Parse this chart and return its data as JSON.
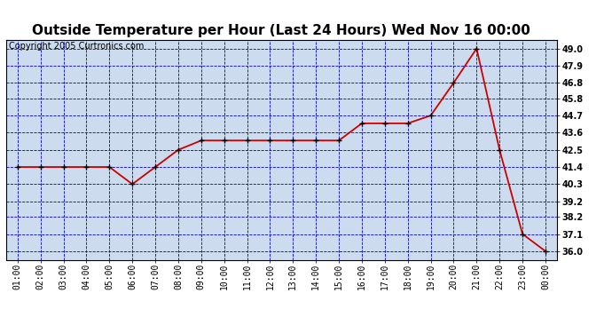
{
  "title": "Outside Temperature per Hour (Last 24 Hours) Wed Nov 16 00:00",
  "copyright": "Copyright 2005 Curtronics.com",
  "x_labels": [
    "01:00",
    "02:00",
    "03:00",
    "04:00",
    "05:00",
    "06:00",
    "07:00",
    "08:00",
    "09:00",
    "10:00",
    "11:00",
    "12:00",
    "13:00",
    "14:00",
    "15:00",
    "16:00",
    "17:00",
    "18:00",
    "19:00",
    "20:00",
    "21:00",
    "22:00",
    "23:00",
    "00:00"
  ],
  "y_values": [
    41.4,
    41.4,
    41.4,
    41.4,
    41.4,
    40.3,
    41.4,
    42.5,
    43.1,
    43.1,
    43.1,
    43.1,
    43.1,
    43.1,
    43.1,
    44.2,
    44.2,
    44.2,
    44.7,
    46.8,
    49.0,
    42.5,
    37.1,
    36.0
  ],
  "line_color": "#cc0000",
  "marker_color": "#000000",
  "bg_color": "#ffffff",
  "plot_bg_color": "#ccdcee",
  "grid_color": "#0000cc",
  "y_min": 35.45,
  "y_max": 49.55,
  "y_ticks": [
    36.0,
    37.1,
    38.2,
    39.2,
    40.3,
    41.4,
    42.5,
    43.6,
    44.7,
    45.8,
    46.8,
    47.9,
    49.0
  ],
  "title_fontsize": 11,
  "tick_fontsize": 7,
  "copyright_fontsize": 7
}
